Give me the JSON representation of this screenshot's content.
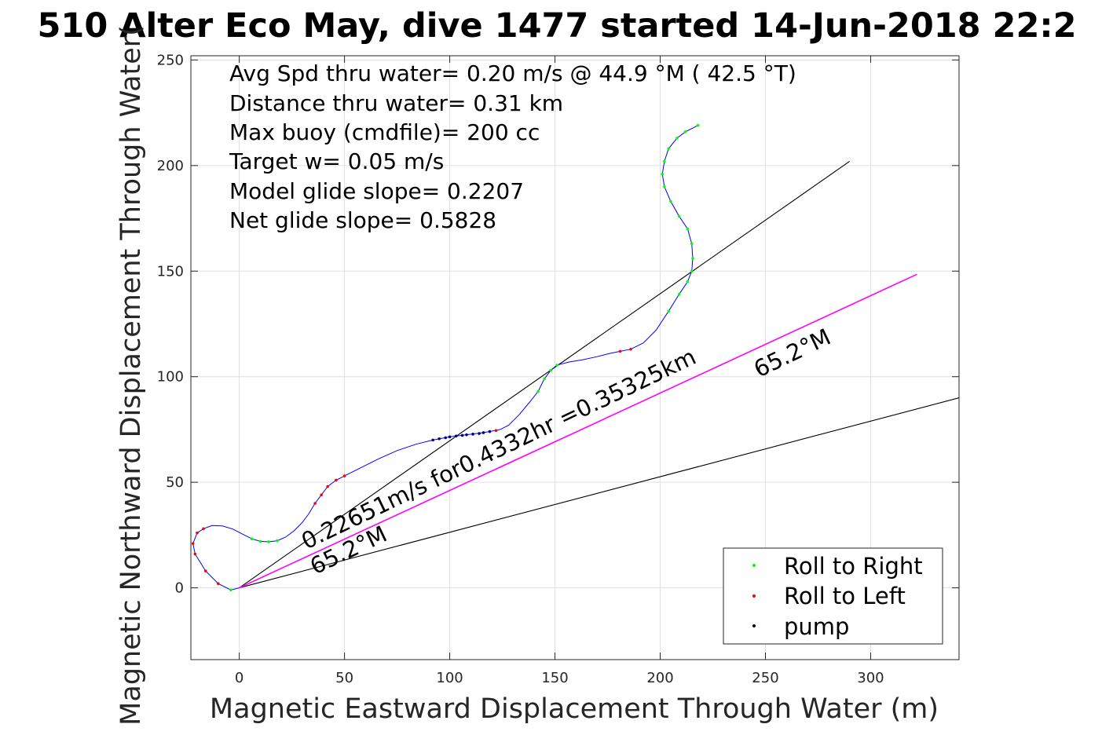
{
  "chart_data": {
    "type": "scatter",
    "title": "510 Alter Eco May, dive 1477 started 14-Jun-2018 22:2",
    "xlabel": "Magnetic Eastward Displacement Through Water (m)",
    "ylabel": "Magnetic Northward Displacement Through Water(",
    "xlim": [
      -23,
      342
    ],
    "ylim": [
      -34,
      252
    ],
    "xticks": [
      0,
      50,
      100,
      150,
      200,
      250,
      300
    ],
    "yticks": [
      0,
      50,
      100,
      150,
      200,
      250
    ],
    "grid": true,
    "legend_position": "bottom-right",
    "annotations": [
      "Avg Spd thru water=  0.20 m/s @  44.9 °M ( 42.5 °T)",
      "Distance thru water=  0.31 km",
      "Max buoy (cmdfile)= 200 cc",
      "Target w= 0.05 m/s",
      "Model glide slope= 0.2207",
      "Net glide slope= 0.5828"
    ],
    "line_labels": {
      "current": "0.22651m/s for0.4332hr =0.35325km",
      "heading_near": "65.2°M",
      "heading_far": "65.2°M"
    },
    "legend": [
      {
        "label": "Roll to Right",
        "color": "#00ff00"
      },
      {
        "label": "Roll to Left",
        "color": "#ff0000"
      },
      {
        "label": "pump",
        "color": "#000000"
      }
    ],
    "track_color": "#0000ff",
    "current_line_color": "#ff00ff",
    "track": [
      [
        0,
        0
      ],
      [
        -4,
        -1
      ],
      [
        -10,
        2
      ],
      [
        -16,
        8
      ],
      [
        -21,
        16
      ],
      [
        -22,
        21
      ],
      [
        -20,
        26
      ],
      [
        -17,
        28
      ],
      [
        -13,
        29.5
      ],
      [
        -8,
        29.3
      ],
      [
        -3,
        27.8
      ],
      [
        2,
        25.2
      ],
      [
        6,
        23.2
      ],
      [
        10,
        22
      ],
      [
        14,
        21.8
      ],
      [
        18,
        22.3
      ],
      [
        22,
        24
      ],
      [
        26,
        27
      ],
      [
        30,
        31
      ],
      [
        33,
        35
      ],
      [
        36,
        40
      ],
      [
        39,
        44
      ],
      [
        42,
        48
      ],
      [
        46,
        51
      ],
      [
        50,
        53
      ],
      [
        58,
        57
      ],
      [
        66,
        61
      ],
      [
        75,
        65
      ],
      [
        84,
        68
      ],
      [
        92,
        70
      ],
      [
        100,
        71.5
      ],
      [
        108,
        72.5
      ],
      [
        116,
        73.5
      ],
      [
        124,
        75
      ],
      [
        128,
        77
      ],
      [
        133,
        82
      ],
      [
        138,
        88
      ],
      [
        142,
        93
      ],
      [
        145,
        99
      ],
      [
        148,
        103
      ],
      [
        151,
        105.5
      ],
      [
        157,
        107
      ],
      [
        163,
        108
      ],
      [
        170,
        109.5
      ],
      [
        176,
        111
      ],
      [
        181,
        112
      ],
      [
        186,
        113
      ],
      [
        192,
        116
      ],
      [
        198,
        122
      ],
      [
        204,
        131
      ],
      [
        209,
        139
      ],
      [
        213,
        145
      ],
      [
        215,
        150
      ],
      [
        215.5,
        156
      ],
      [
        215,
        163
      ],
      [
        213,
        170
      ],
      [
        209,
        176
      ],
      [
        205,
        183
      ],
      [
        202,
        190
      ],
      [
        201,
        196
      ],
      [
        202,
        202
      ],
      [
        204,
        208
      ],
      [
        208,
        213
      ],
      [
        212,
        216
      ],
      [
        218,
        219
      ]
    ],
    "roll_right_points": [
      [
        -4,
        -1
      ],
      [
        6,
        23.2
      ],
      [
        10,
        22
      ],
      [
        14,
        21.8
      ],
      [
        18,
        22.3
      ],
      [
        142,
        93
      ],
      [
        145,
        99
      ],
      [
        148,
        103
      ],
      [
        151,
        105.5
      ],
      [
        204,
        131
      ],
      [
        209,
        139
      ],
      [
        213,
        145
      ],
      [
        215,
        150
      ],
      [
        215.5,
        156
      ],
      [
        215,
        163
      ],
      [
        213,
        170
      ],
      [
        209,
        176
      ],
      [
        205,
        183
      ],
      [
        202,
        190
      ],
      [
        201,
        196
      ],
      [
        202,
        202
      ],
      [
        204,
        208
      ],
      [
        208,
        213
      ],
      [
        212,
        216
      ],
      [
        218,
        219
      ]
    ],
    "roll_left_points": [
      [
        -10,
        2
      ],
      [
        -16,
        8
      ],
      [
        -21,
        16
      ],
      [
        -22,
        21
      ],
      [
        -20,
        26
      ],
      [
        -17,
        28
      ],
      [
        36,
        40
      ],
      [
        39,
        44
      ],
      [
        42,
        48
      ],
      [
        46,
        51
      ],
      [
        50,
        53
      ],
      [
        122,
        74.5
      ],
      [
        181,
        112
      ],
      [
        186,
        113
      ]
    ],
    "pump_points": [
      [
        92,
        70
      ],
      [
        95,
        70.6
      ],
      [
        98,
        71.1
      ],
      [
        100,
        71.5
      ],
      [
        103,
        71.9
      ],
      [
        106,
        72.2
      ],
      [
        108,
        72.5
      ],
      [
        111,
        72.8
      ],
      [
        114,
        73.1
      ],
      [
        116,
        73.5
      ],
      [
        119,
        74
      ]
    ],
    "black_lines": [
      {
        "from": [
          0,
          0
        ],
        "to": [
          290,
          202
        ]
      },
      {
        "from": [
          0,
          0
        ],
        "to": [
          342,
          90
        ]
      }
    ],
    "current_line": {
      "from": [
        0,
        0
      ],
      "to": [
        322,
        148.5
      ]
    }
  }
}
